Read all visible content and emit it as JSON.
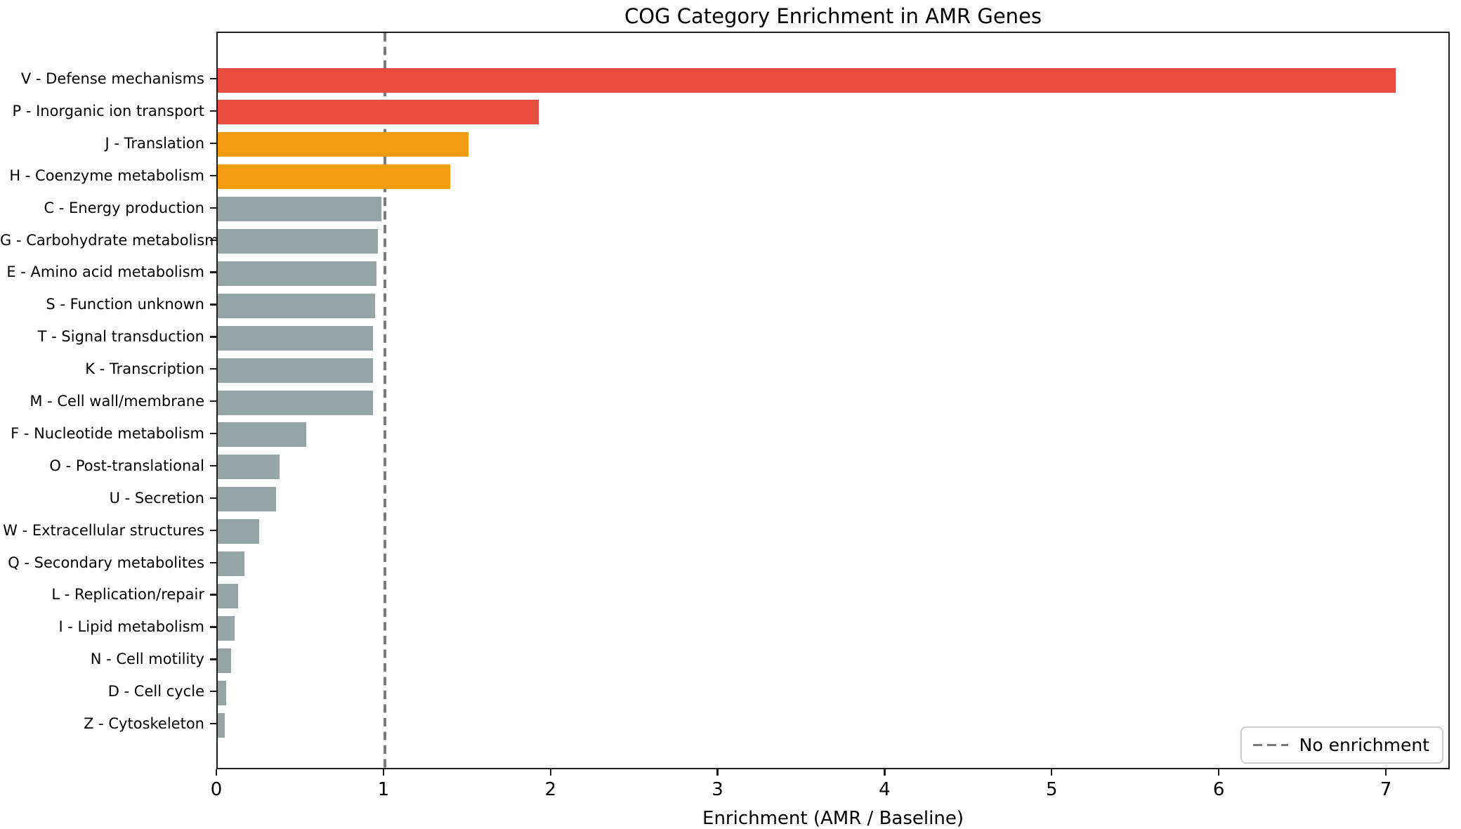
{
  "chart_data": {
    "type": "bar",
    "orientation": "horizontal",
    "title": "COG Category Enrichment in AMR Genes",
    "xlabel": "Enrichment (AMR / Baseline)",
    "ylabel": "",
    "xlim": [
      0,
      7.38
    ],
    "x_ticks": [
      "0",
      "1",
      "2",
      "3",
      "4",
      "5",
      "6",
      "7"
    ],
    "grid": false,
    "categories": [
      "V - Defense mechanisms",
      "P - Inorganic ion transport",
      "J - Translation",
      "H - Coenzyme metabolism",
      "C - Energy production",
      "G - Carbohydrate metabolism",
      "E - Amino acid metabolism",
      "S - Function unknown",
      "T - Signal transduction",
      "K - Transcription",
      "M - Cell wall/membrane",
      "F - Nucleotide metabolism",
      "O - Post-translational",
      "U - Secretion",
      "W - Extracellular structures",
      "Q - Secondary metabolites",
      "L - Replication/repair",
      "I - Lipid metabolism",
      "N - Cell motility",
      "D - Cell cycle",
      "Z - Cytoskeleton"
    ],
    "values": [
      7.05,
      1.92,
      1.5,
      1.39,
      0.98,
      0.96,
      0.95,
      0.94,
      0.93,
      0.93,
      0.93,
      0.53,
      0.37,
      0.35,
      0.25,
      0.16,
      0.12,
      0.1,
      0.08,
      0.05,
      0.04
    ],
    "bar_colors": [
      "#e74c3c",
      "#e74c3c",
      "#f39c12",
      "#f39c12",
      "#95a5a6",
      "#95a5a6",
      "#95a5a6",
      "#95a5a6",
      "#95a5a6",
      "#95a5a6",
      "#95a5a6",
      "#95a5a6",
      "#95a5a6",
      "#95a5a6",
      "#95a5a6",
      "#95a5a6",
      "#95a5a6",
      "#95a5a6",
      "#95a5a6",
      "#95a5a6",
      "#95a5a6"
    ],
    "reference_line": {
      "x": 1,
      "style": "dashed",
      "color": "#7b7b7b"
    },
    "legend": {
      "label": "No enrichment",
      "position": "lower-right"
    }
  },
  "colors": {
    "enriched_strong": "#e74c3c",
    "enriched_mild": "#f39c12",
    "baseline": "#95a5a6",
    "reference_line": "#7b7b7b",
    "spine": "#1d1d1d",
    "background": "#ffffff"
  }
}
